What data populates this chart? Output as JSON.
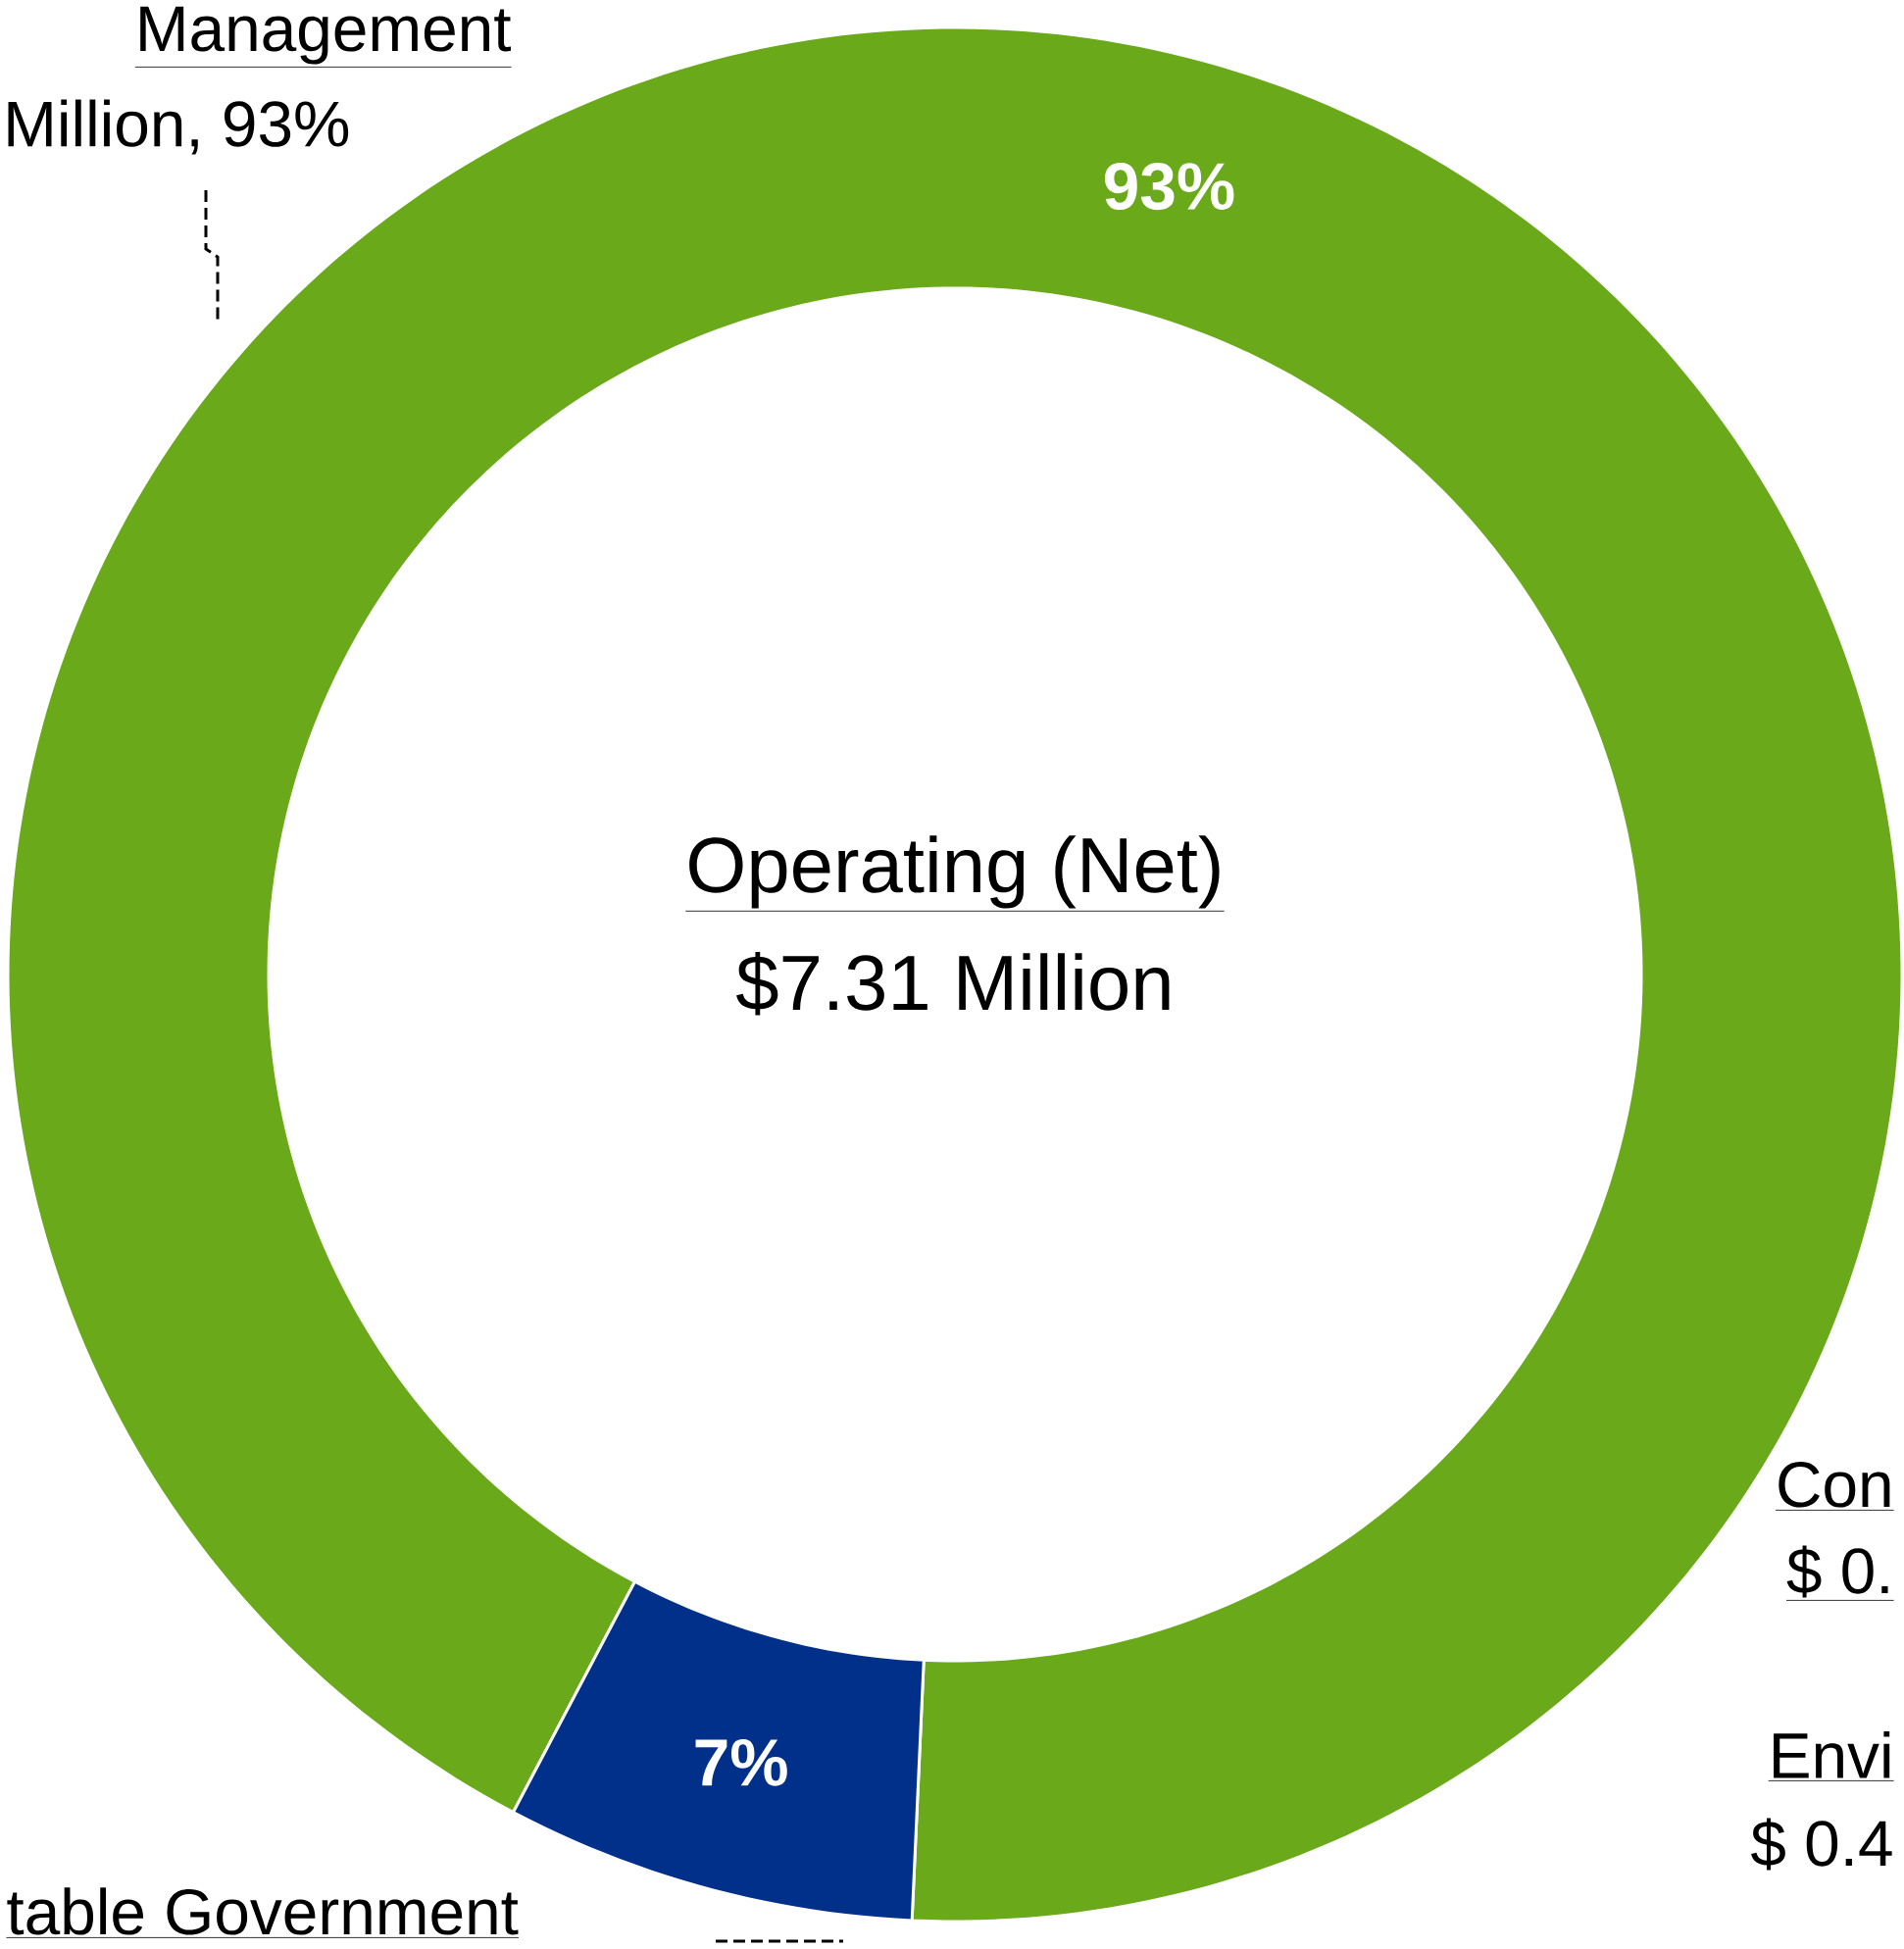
{
  "chart_data": {
    "type": "donut",
    "title": "Operating (Net)",
    "subtitle": "$7.31 Million",
    "categories": [
      "Management",
      "table Government"
    ],
    "values": [
      93,
      7
    ],
    "colors": [
      "#6aa919",
      "#00308a"
    ],
    "value_labels": [
      "93%",
      "7%"
    ],
    "annotations": [
      "Million, 93%",
      "Con",
      "$ 0.",
      "Envi",
      "$ 0.4"
    ]
  }
}
